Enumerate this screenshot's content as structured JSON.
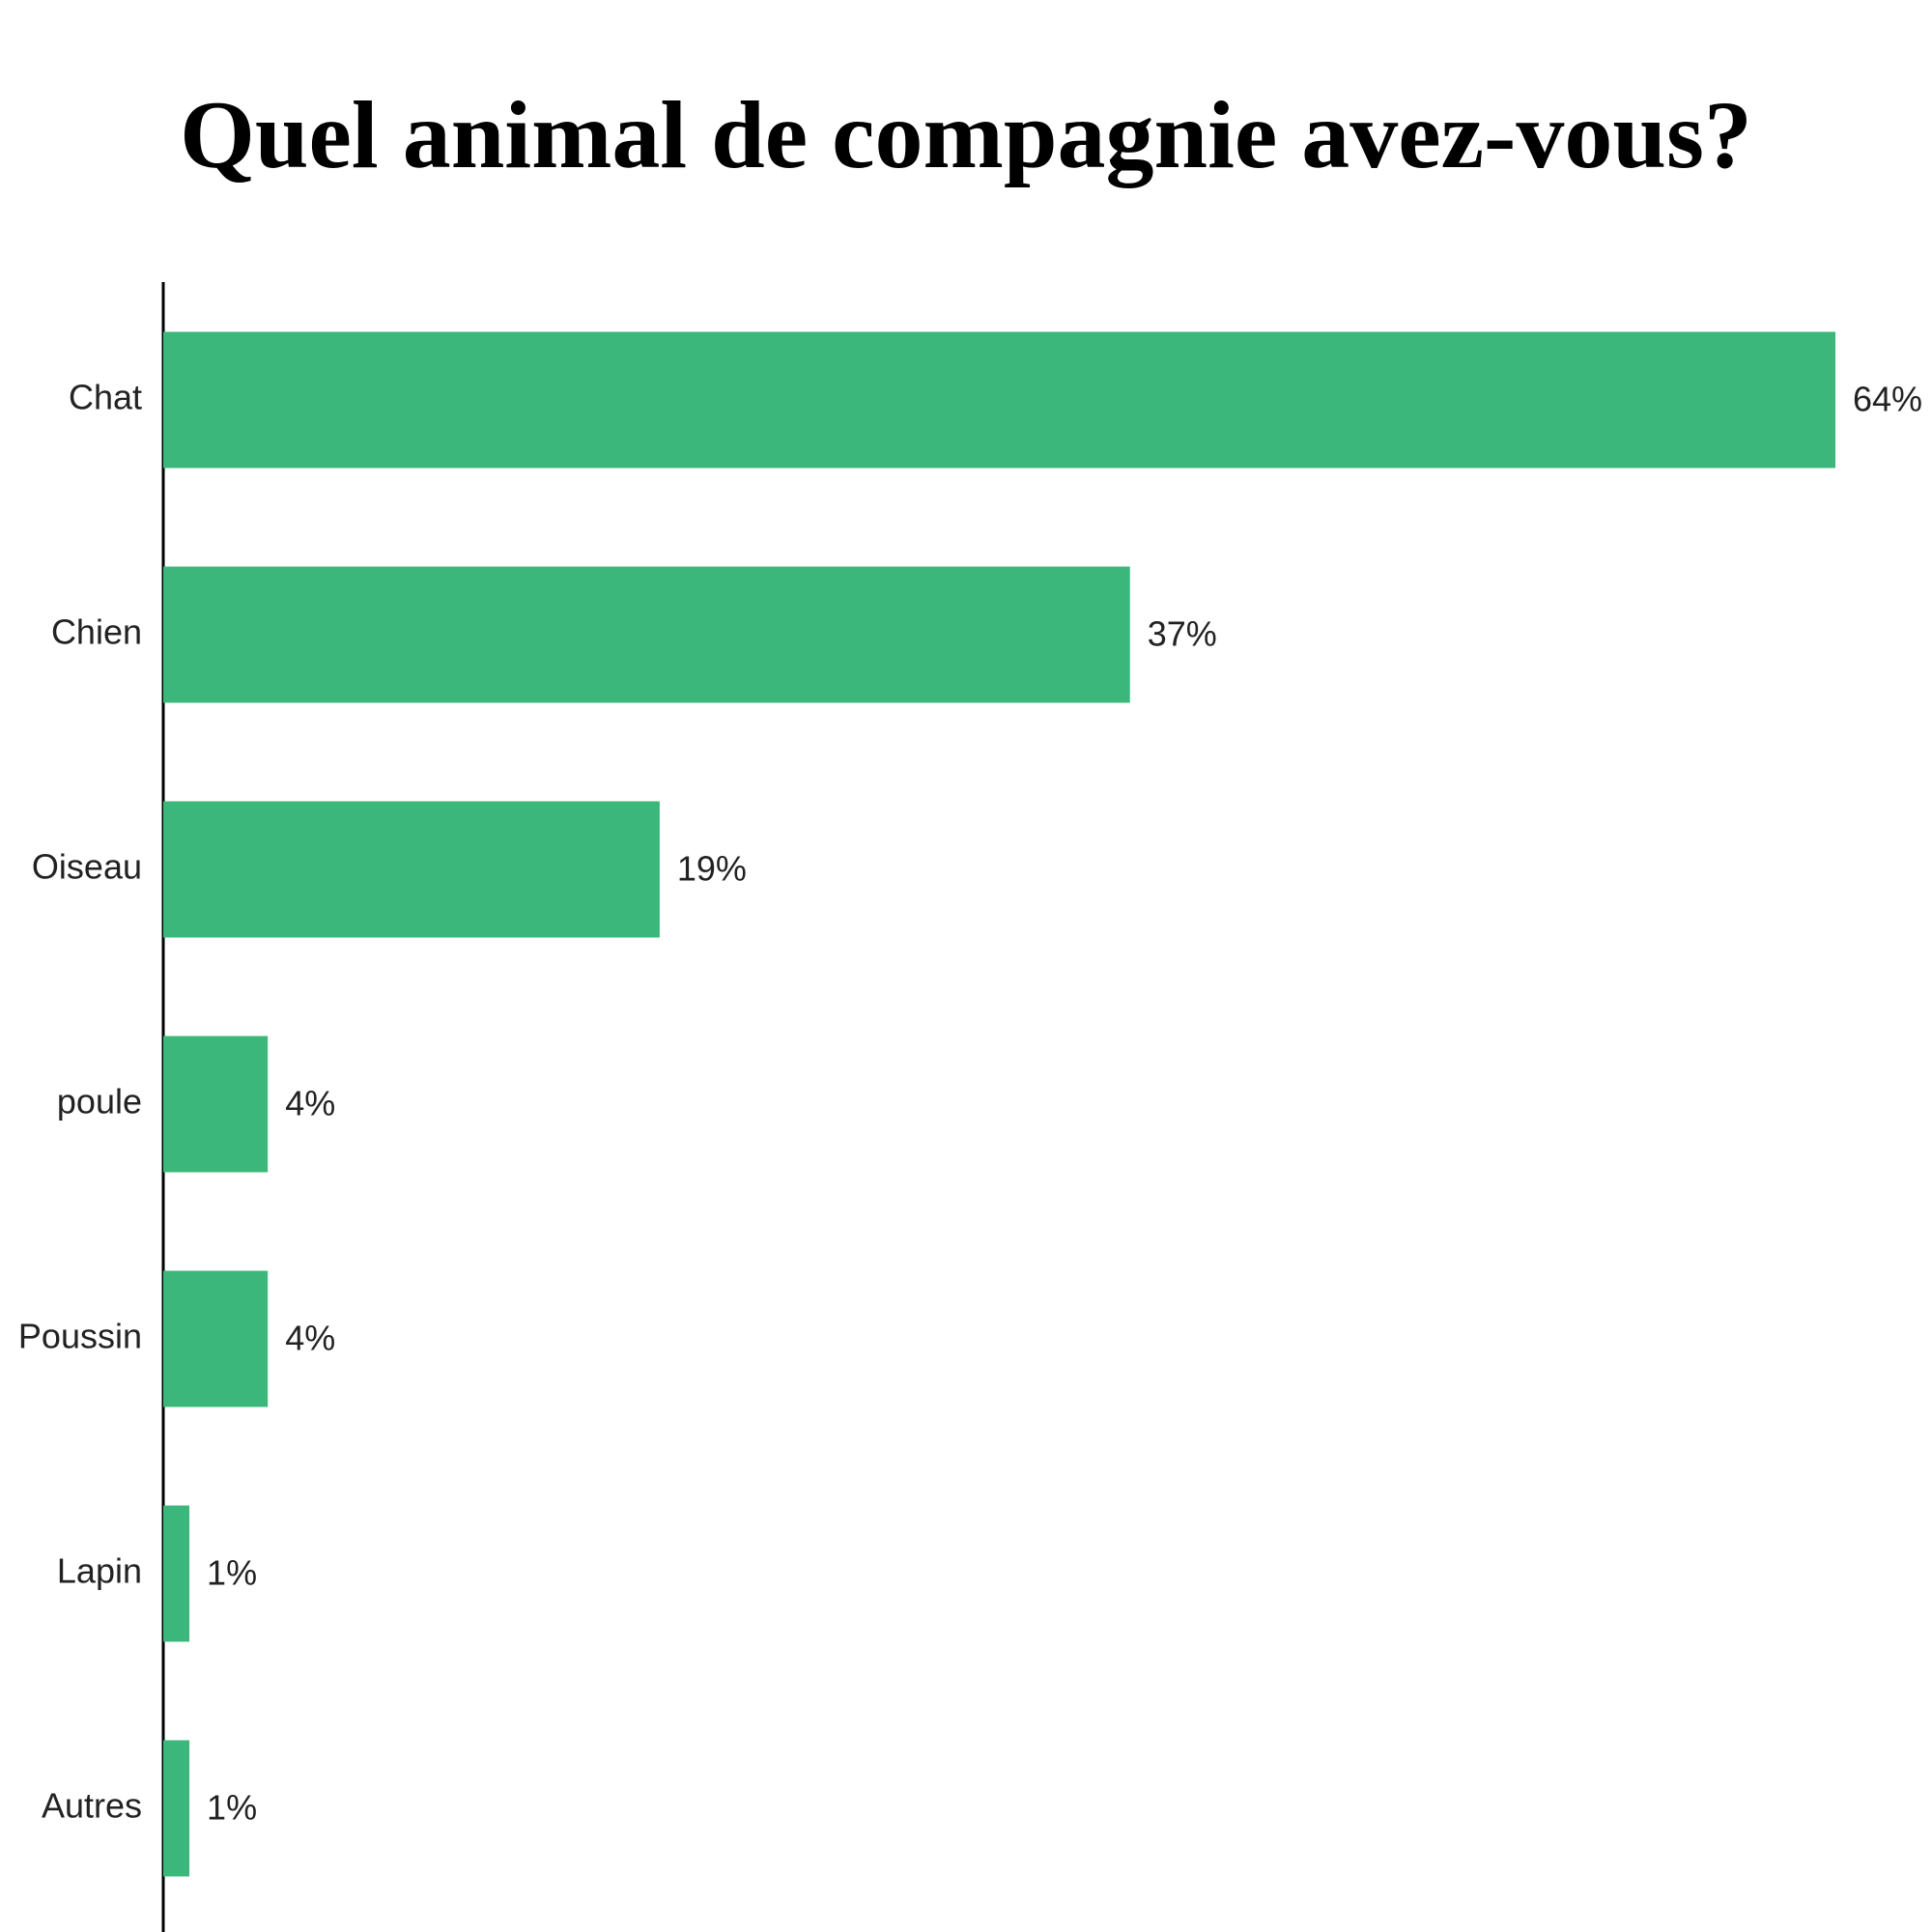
{
  "chart_data": {
    "type": "bar",
    "orientation": "horizontal",
    "title": "Quel animal de compagnie avez-vous?",
    "categories": [
      "Chat",
      "Chien",
      "Oiseau",
      "poule",
      "Poussin",
      "Lapin",
      "Autres"
    ],
    "values": [
      64,
      37,
      19,
      4,
      4,
      1,
      1
    ],
    "value_labels": [
      "64%",
      "37%",
      "19%",
      "4%",
      "4%",
      "1%",
      "1%"
    ],
    "color": "#3bb77b"
  }
}
